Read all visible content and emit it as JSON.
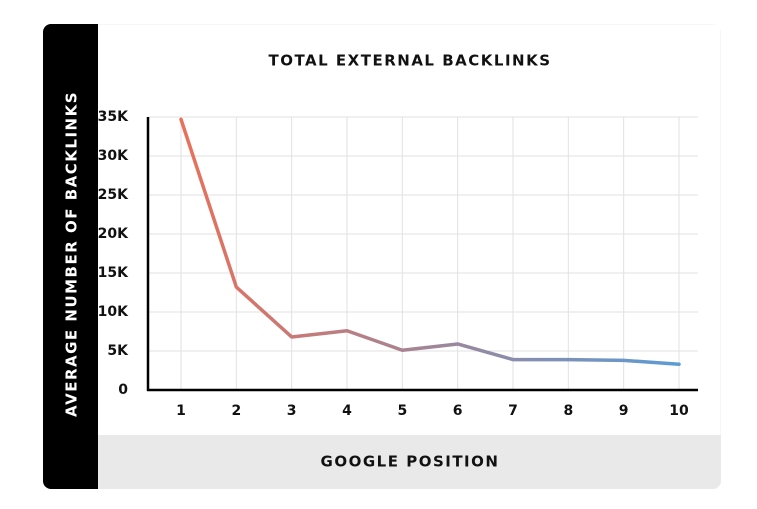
{
  "chart_data": {
    "type": "line",
    "title": "TOTAL EXTERNAL BACKLINKS",
    "x_label": "GOOGLE POSITION",
    "y_label": "AVERAGE NUMBER OF BACKLINKS",
    "categories": [
      "1",
      "2",
      "3",
      "4",
      "5",
      "6",
      "7",
      "8",
      "9",
      "10"
    ],
    "series": [
      {
        "name": "Total external backlinks",
        "color": [
          "#e8705a",
          "#5b9bd5"
        ],
        "values": [
          34700,
          13200,
          6800,
          7600,
          5100,
          5900,
          3900,
          3900,
          3800,
          3300
        ]
      }
    ],
    "ylim": [
      0,
      35000
    ],
    "yticks": [
      0,
      {
        "value": 5000,
        "label": "5K"
      },
      {
        "value": 10000,
        "label": "10K"
      },
      {
        "value": 15000,
        "label": "15K"
      },
      {
        "value": 20000,
        "label": "20K"
      },
      {
        "value": 25000,
        "label": "25K"
      },
      {
        "value": 30000,
        "label": "30K"
      },
      {
        "value": 35000,
        "label": "35K"
      }
    ],
    "grid": true
  }
}
